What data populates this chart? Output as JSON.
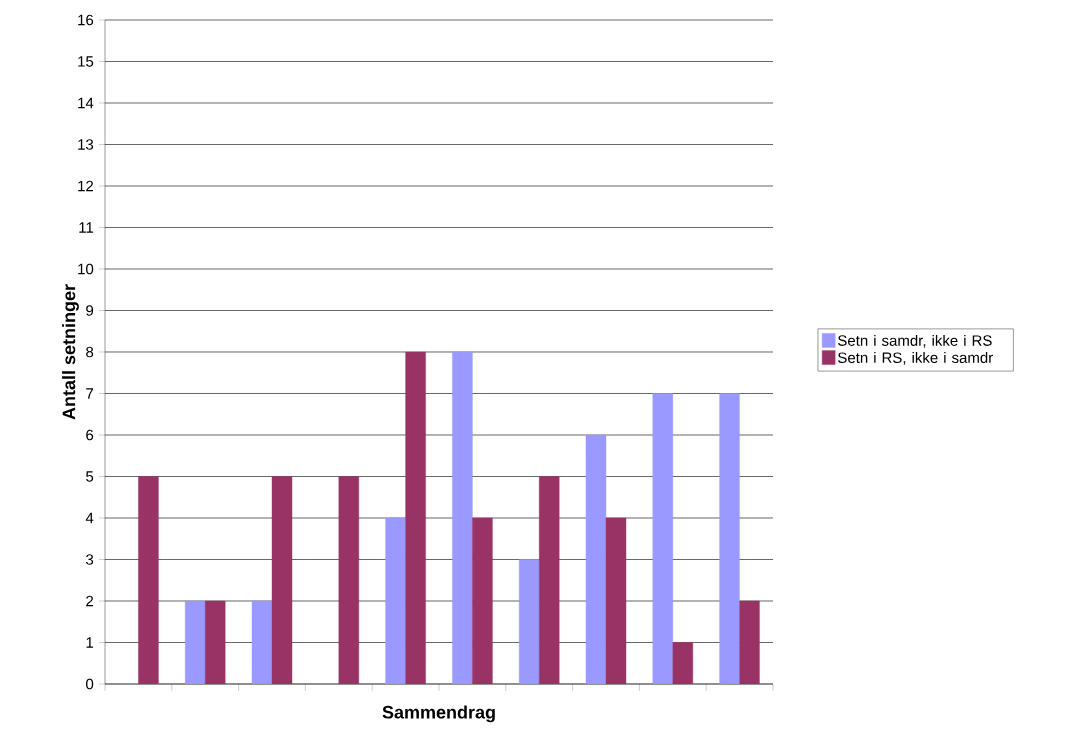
{
  "chart_data": {
    "type": "bar",
    "xlabel": "Sammendrag",
    "ylabel": "Antall setninger",
    "categories": [
      null,
      null,
      null,
      null,
      null,
      null,
      null,
      null,
      null,
      null
    ],
    "series": [
      {
        "name": "Setn i samdr, ikke i RS",
        "color": "#9999ff",
        "values": [
          0,
          2,
          2,
          0,
          4,
          8,
          3,
          6,
          7,
          7
        ]
      },
      {
        "name": "Setn i RS, ikke i samdr",
        "color": "#993366",
        "values": [
          5,
          2,
          5,
          5,
          8,
          4,
          5,
          4,
          1,
          2
        ]
      }
    ],
    "ylim": [
      0,
      16
    ],
    "yticks": [
      0,
      1,
      2,
      3,
      4,
      5,
      6,
      7,
      8,
      9,
      10,
      11,
      12,
      13,
      14,
      15,
      16
    ],
    "grid": "y",
    "legend": "right"
  }
}
